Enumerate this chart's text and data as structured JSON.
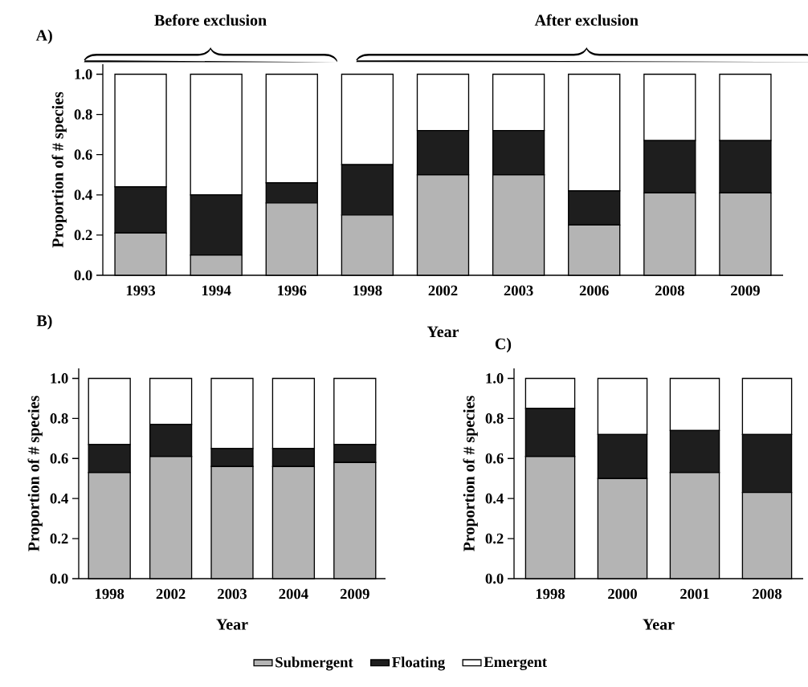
{
  "chart_data": [
    {
      "type": "bar",
      "stacked": true,
      "title": "A)",
      "xlabel": "Year",
      "ylabel": "Proportion of # species",
      "annotations": [
        "Before exclusion",
        "After exclusion"
      ],
      "categories": [
        "1993",
        "1994",
        "1996",
        "1998",
        "2002",
        "2003",
        "2006",
        "2008",
        "2009"
      ],
      "ylim": [
        0,
        1.05
      ],
      "yticks": [
        {
          "value": 0,
          "label": "0.0"
        },
        {
          "value": 0.2,
          "label": "0.2"
        },
        {
          "value": 0.4,
          "label": "0.4"
        },
        {
          "value": 0.6,
          "label": "0.6"
        },
        {
          "value": 0.8,
          "label": "0.8"
        },
        {
          "value": 1,
          "label": "1.0"
        }
      ],
      "series": [
        {
          "color": "#b4b4b4",
          "values": [
            0.21,
            0.1,
            0.36,
            0.3,
            0.5,
            0.5,
            0.25,
            0.41,
            0.41
          ]
        },
        {
          "color": "#1e1e1e",
          "values": [
            0.23,
            0.3,
            0.1,
            0.25,
            0.22,
            0.22,
            0.17,
            0.26,
            0.26
          ]
        },
        {
          "color": "#ffffff",
          "values": [
            0.56,
            0.6,
            0.54,
            0.45,
            0.28,
            0.28,
            0.58,
            0.33,
            0.33
          ]
        }
      ]
    },
    {
      "type": "bar",
      "stacked": true,
      "title": "B)",
      "xlabel": "Year",
      "ylabel": "Proportion of # species",
      "categories": [
        "1998",
        "2002",
        "2003",
        "2004",
        "2009"
      ],
      "ylim": [
        0,
        1.05
      ],
      "yticks": [
        {
          "value": 0,
          "label": "0.0"
        },
        {
          "value": 0.2,
          "label": "0.2"
        },
        {
          "value": 0.4,
          "label": "0.4"
        },
        {
          "value": 0.6,
          "label": "0.6"
        },
        {
          "value": 0.8,
          "label": "0.8"
        },
        {
          "value": 1,
          "label": "1.0"
        }
      ],
      "series": [
        {
          "color": "#b4b4b4",
          "values": [
            0.53,
            0.61,
            0.56,
            0.56,
            0.58
          ]
        },
        {
          "color": "#1e1e1e",
          "values": [
            0.14,
            0.16,
            0.09,
            0.09,
            0.09
          ]
        },
        {
          "color": "#ffffff",
          "values": [
            0.33,
            0.23,
            0.35,
            0.35,
            0.33
          ]
        }
      ]
    },
    {
      "type": "bar",
      "stacked": true,
      "title": "C)",
      "xlabel": "Year",
      "ylabel": "Proportion of # species",
      "legend": "bottom",
      "categories": [
        "1998",
        "2000",
        "2001",
        "2008"
      ],
      "ylim": [
        0,
        1.05
      ],
      "yticks": [
        {
          "value": 0,
          "label": "0.0"
        },
        {
          "value": 0.2,
          "label": "0.2"
        },
        {
          "value": 0.4,
          "label": "0.4"
        },
        {
          "value": 0.6,
          "label": "0.6"
        },
        {
          "value": 0.8,
          "label": "0.8"
        },
        {
          "value": 1,
          "label": "1.0"
        }
      ],
      "series": [
        {
          "name": "Submergent",
          "color": "#b4b4b4",
          "values": [
            0.61,
            0.5,
            0.53,
            0.43
          ]
        },
        {
          "name": "Floating",
          "color": "#1e1e1e",
          "values": [
            0.24,
            0.22,
            0.21,
            0.29
          ]
        },
        {
          "name": "Emergent",
          "color": "#ffffff",
          "values": [
            0.15,
            0.28,
            0.26,
            0.28
          ]
        }
      ]
    }
  ]
}
